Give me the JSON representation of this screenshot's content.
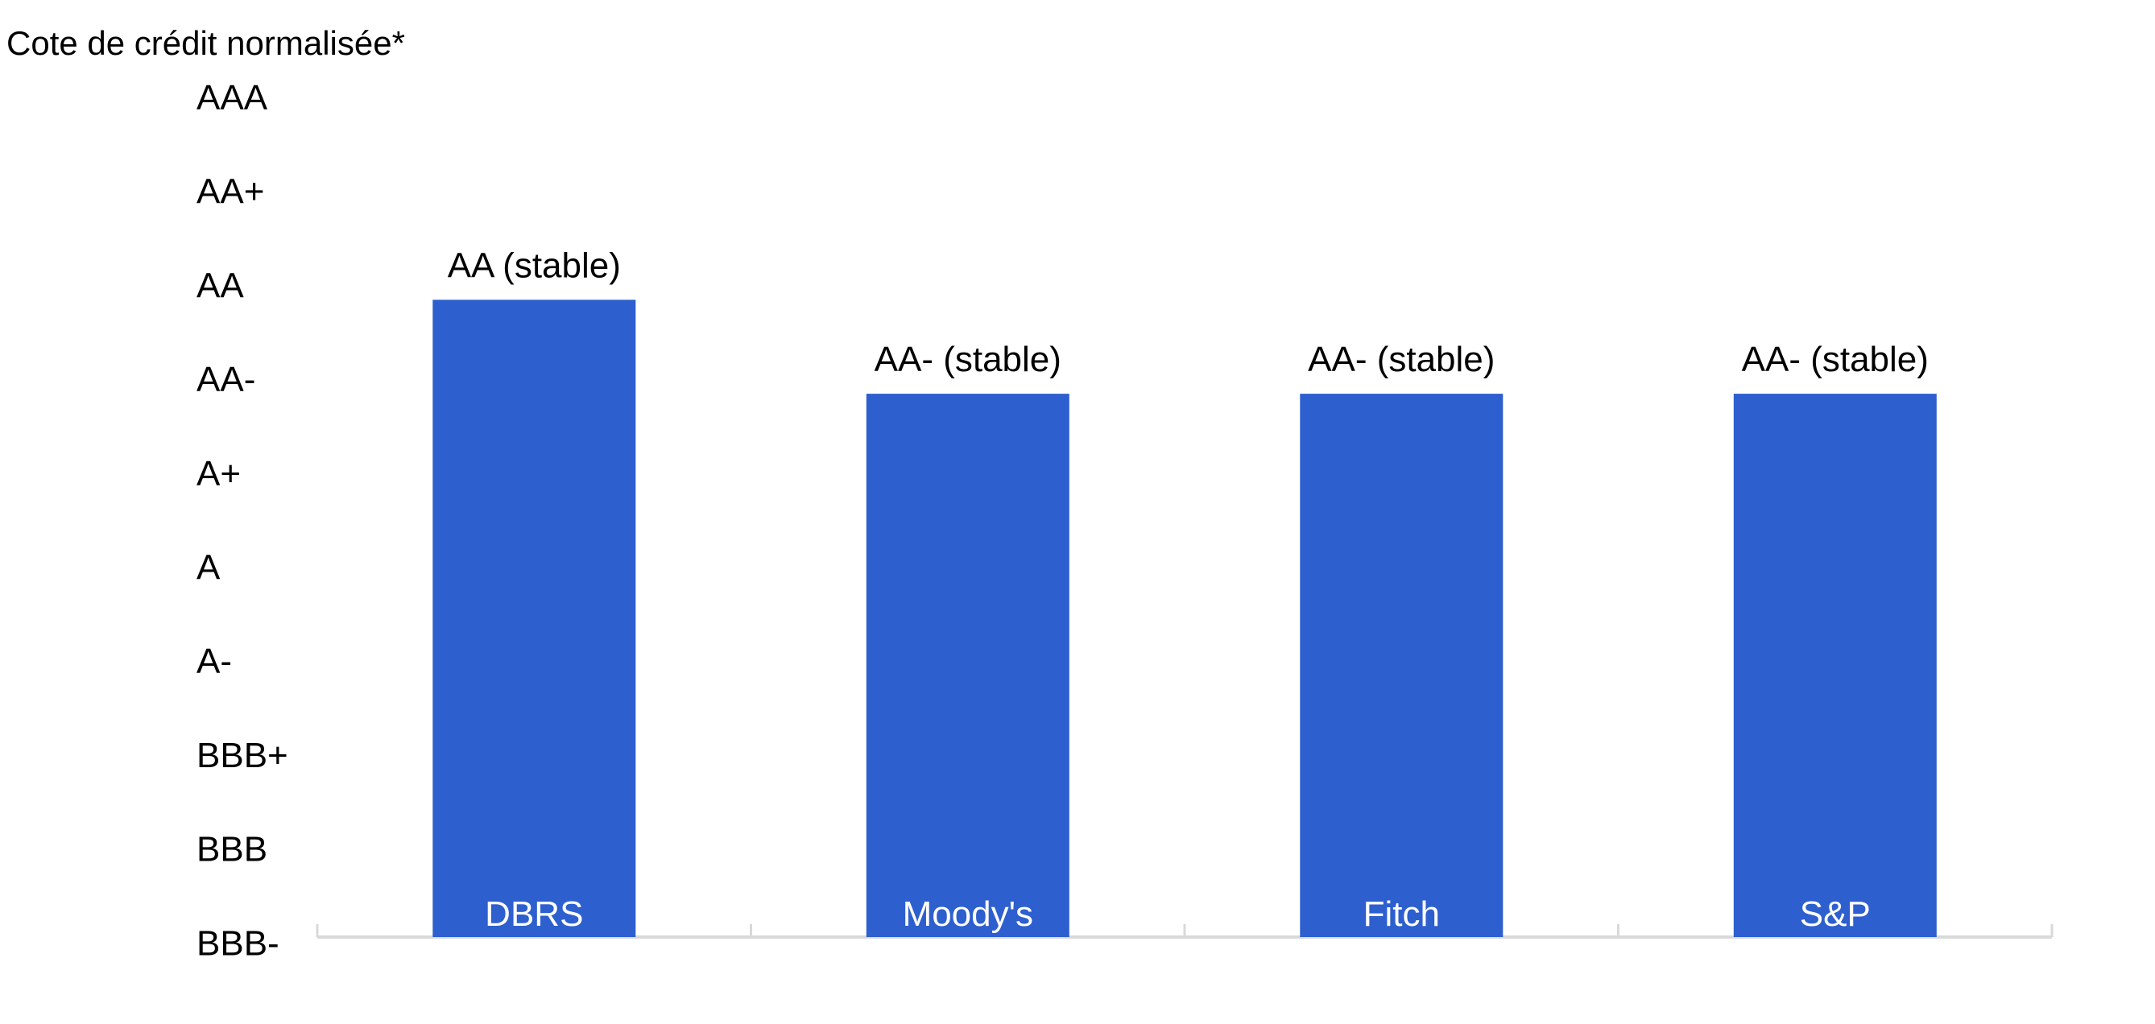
{
  "chart_data": {
    "type": "bar",
    "title": "Cote de crédit normalisée*",
    "xlabel": "",
    "ylabel": "",
    "y_ticks": [
      "AAA",
      "AA+",
      "AA",
      "AA-",
      "A+",
      "A",
      "A-",
      "BBB+",
      "BBB",
      "BBB-"
    ],
    "ylim": [
      "BBB-",
      "AAA"
    ],
    "categories": [
      "DBRS",
      "Moody's",
      "Fitch",
      "S&P"
    ],
    "values": [
      "AA",
      "AA-",
      "AA-",
      "AA-"
    ],
    "data_labels": [
      "AA (stable)",
      "AA- (stable)",
      "AA- (stable)",
      "AA- (stable)"
    ],
    "category_label_position": "inside-bar-bottom",
    "grid": false,
    "legend": "none",
    "colors": {
      "bar": "#2d5fce",
      "axis": "#d9d9d9",
      "text": "#000000",
      "category_text": "#ffffff"
    }
  }
}
